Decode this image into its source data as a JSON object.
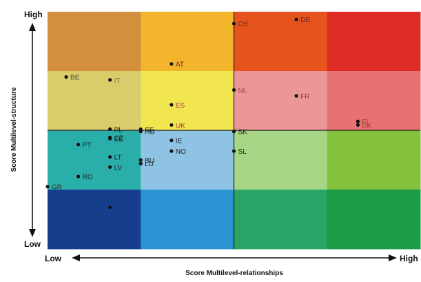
{
  "chart_data": {
    "type": "scatter",
    "xlabel": "Score Multilevel-relationships",
    "ylabel": "Score Multilevel-structure",
    "x_axis_ends": [
      "Low",
      "High"
    ],
    "y_axis_ends": [
      "Low",
      "High"
    ],
    "xlim": [
      0,
      4
    ],
    "ylim": [
      0,
      4
    ],
    "grid": false,
    "cell_colors": [
      [
        "#d2903e",
        "#f3b52c",
        "#e6531d",
        "#df2b26"
      ],
      [
        "#d9cc6a",
        "#f2e650",
        "#eb9796",
        "#e87272"
      ],
      [
        "#2aaeaa",
        "#8ec3e4",
        "#a6d585",
        "#84c13c"
      ],
      [
        "#153f8c",
        "#2b93d2",
        "#28a567",
        "#1b9c46"
      ]
    ],
    "points": [
      {
        "label": "DE",
        "x": 2.67,
        "y": 3.87,
        "color": "#6b2a1a"
      },
      {
        "label": "CH",
        "x": 2.0,
        "y": 3.8,
        "color": "#6b2a1a"
      },
      {
        "label": "AT",
        "x": 1.33,
        "y": 3.12,
        "color": "#6b2a1a"
      },
      {
        "label": "BE",
        "x": 0.2,
        "y": 2.9,
        "color": "#4a4a4a"
      },
      {
        "label": "IT",
        "x": 0.67,
        "y": 2.85,
        "color": "#6a6a6a"
      },
      {
        "label": "NL",
        "x": 2.0,
        "y": 2.68,
        "color": "#a03939"
      },
      {
        "label": "FR",
        "x": 2.67,
        "y": 2.58,
        "color": "#a03939"
      },
      {
        "label": "ES",
        "x": 1.33,
        "y": 2.43,
        "color": "#a03939"
      },
      {
        "label": "UK",
        "x": 1.33,
        "y": 2.09,
        "color": "#a03939"
      },
      {
        "label": "DK",
        "x": 3.33,
        "y": 2.09,
        "color": "#a03939"
      },
      {
        "label": "FI",
        "x": 3.33,
        "y": 2.15,
        "color": "#a03939"
      },
      {
        "label": "PL",
        "x": 0.67,
        "y": 2.02,
        "color": "#222222"
      },
      {
        "label": "SE",
        "x": 1.0,
        "y": 2.02,
        "color": "#222222"
      },
      {
        "label": "HU",
        "x": 1.0,
        "y": 1.98,
        "color": "#222222"
      },
      {
        "label": "SK",
        "x": 2.0,
        "y": 1.98,
        "color": "#222222"
      },
      {
        "label": "CZ",
        "x": 0.67,
        "y": 1.88,
        "color": "#222222"
      },
      {
        "label": "EE",
        "x": 0.67,
        "y": 1.86,
        "color": "#222222"
      },
      {
        "label": "IE",
        "x": 1.33,
        "y": 1.83,
        "color": "#222222"
      },
      {
        "label": "PT",
        "x": 0.33,
        "y": 1.76,
        "color": "#222222"
      },
      {
        "label": "NO",
        "x": 1.33,
        "y": 1.65,
        "color": "#222222"
      },
      {
        "label": "SL",
        "x": 2.0,
        "y": 1.65,
        "color": "#222222"
      },
      {
        "label": "LT",
        "x": 0.67,
        "y": 1.55,
        "color": "#222222"
      },
      {
        "label": "BU",
        "x": 1.0,
        "y": 1.5,
        "color": "#222222"
      },
      {
        "label": "LU",
        "x": 1.0,
        "y": 1.44,
        "color": "#222222"
      },
      {
        "label": "LV",
        "x": 0.67,
        "y": 1.38,
        "color": "#222222"
      },
      {
        "label": "RO",
        "x": 0.33,
        "y": 1.22,
        "color": "#222222"
      },
      {
        "label": "GR",
        "x": 0.0,
        "y": 1.05,
        "color": "#333333"
      }
    ],
    "unlabeled_points": [
      {
        "x": 0.67,
        "y": 0.7,
        "color": "#111111"
      }
    ]
  }
}
